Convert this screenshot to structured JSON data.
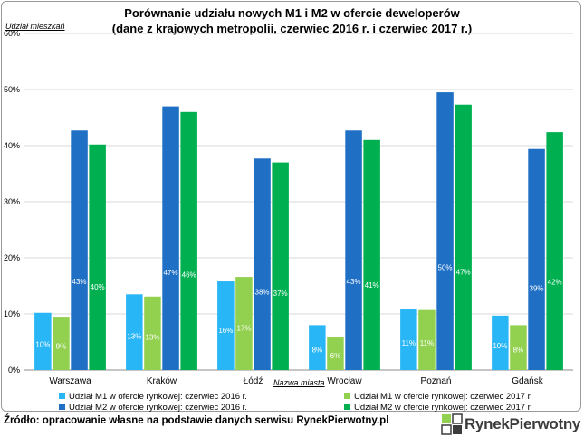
{
  "chart_data": {
    "type": "bar",
    "title": "Porównanie udziału nowych M1 i M2 w ofercie deweloperów",
    "subtitle": "(dane z krajowych metropolii, czerwiec 2016 r. i czerwiec 2017 r.)",
    "ylabel": "Udział mieszkań",
    "xlabel": "Nazwa miasta",
    "ylim": [
      0,
      60
    ],
    "yticks": [
      "0%",
      "10%",
      "20%",
      "30%",
      "40%",
      "50%",
      "60%"
    ],
    "grid": true,
    "legend_position": "bottom",
    "categories": [
      "Warszawa",
      "Kraków",
      "Łódź",
      "Wrocław",
      "Poznań",
      "Gdańsk"
    ],
    "series": [
      {
        "name": "Udział M1 w ofercie rynkowej: czerwiec 2016 r.",
        "color": "#29B6F6",
        "values": [
          10.2,
          13.5,
          15.8,
          8.0,
          10.8,
          9.7
        ],
        "labels": [
          "10%",
          "13%",
          "16%",
          "8%",
          "11%",
          "10%"
        ]
      },
      {
        "name": "Udział M1 w ofercie rynkowej: czerwiec 2017 r.",
        "color": "#92D050",
        "values": [
          9.5,
          13.1,
          16.6,
          5.8,
          10.7,
          8.0
        ],
        "labels": [
          "9%",
          "13%",
          "17%",
          "6%",
          "11%",
          "8%"
        ]
      },
      {
        "name": "Udział M2 w ofercie rynkowej: czerwiec 2016 r.",
        "color": "#1F6FC5",
        "values": [
          42.7,
          47.0,
          37.7,
          42.7,
          49.5,
          39.4
        ],
        "labels": [
          "43%",
          "47%",
          "38%",
          "43%",
          "50%",
          "39%"
        ]
      },
      {
        "name": "Udział M2 w ofercie rynkowej: czerwiec 2017 r.",
        "color": "#00B050",
        "values": [
          40.2,
          46.0,
          37.0,
          41.0,
          47.3,
          42.4
        ],
        "labels": [
          "40%",
          "46%",
          "37%",
          "41%",
          "47%",
          "42%"
        ]
      }
    ]
  },
  "footer": {
    "source": "Źródło: opracowanie własne na podstawie danych serwisu RynekPierwotny.pl",
    "logo_text": "RynekPierwotny"
  }
}
